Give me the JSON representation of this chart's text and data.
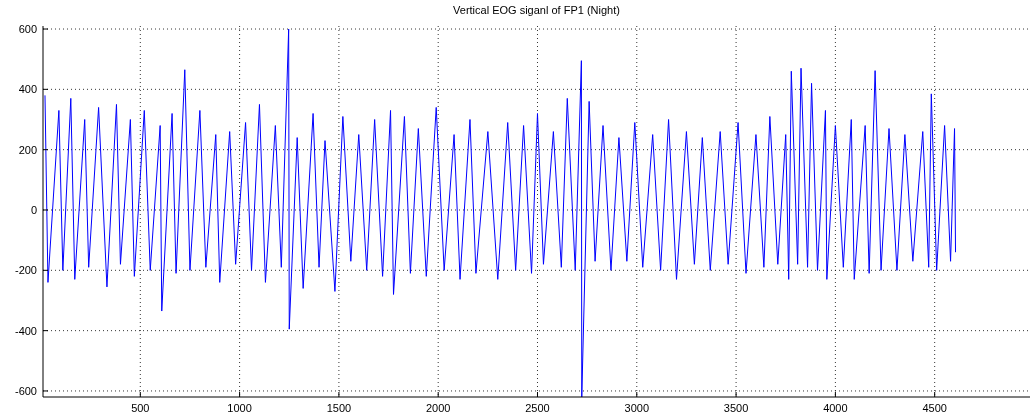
{
  "chart_data": {
    "type": "line",
    "title": "Vertical EOG siganl of FP1 (Night)",
    "xlim": [
      10,
      4980
    ],
    "ylim": [
      -620,
      610
    ],
    "xticks": [
      500,
      1000,
      1500,
      2000,
      2500,
      3000,
      3500,
      4000,
      4500
    ],
    "yticks": [
      -600,
      -400,
      -200,
      0,
      200,
      400,
      600
    ],
    "grid": true,
    "line_style": "solid",
    "series": [
      {
        "color": "#0000ff",
        "x": [
          20,
          35,
          90,
          110,
          150,
          170,
          220,
          240,
          290,
          332,
          380,
          400,
          450,
          470,
          520,
          550,
          600,
          608,
          660,
          680,
          724,
          750,
          800,
          830,
          880,
          900,
          950,
          980,
          1030,
          1060,
          1100,
          1130,
          1180,
          1210,
          1247,
          1250,
          1290,
          1320,
          1370,
          1400,
          1430,
          1480,
          1520,
          1560,
          1600,
          1640,
          1680,
          1720,
          1760,
          1775,
          1830,
          1860,
          1900,
          1940,
          1990,
          2030,
          2080,
          2110,
          2160,
          2190,
          2250,
          2300,
          2350,
          2390,
          2430,
          2470,
          2500,
          2530,
          2580,
          2620,
          2650,
          2690,
          2721,
          2723,
          2760,
          2790,
          2830,
          2870,
          2910,
          2950,
          2990,
          3030,
          3080,
          3120,
          3160,
          3200,
          3250,
          3290,
          3330,
          3370,
          3420,
          3460,
          3510,
          3550,
          3600,
          3640,
          3670,
          3710,
          3750,
          3765,
          3778,
          3810,
          3827,
          3860,
          3880,
          3910,
          3950,
          3957,
          4000,
          4040,
          4080,
          4095,
          4150,
          4170,
          4200,
          4230,
          4270,
          4310,
          4350,
          4390,
          4440,
          4470,
          4483,
          4510,
          4550,
          4580,
          4600,
          4605
        ],
        "values": [
          380,
          -240,
          330,
          -200,
          370,
          -230,
          300,
          -190,
          340,
          -255,
          350,
          -180,
          300,
          -220,
          330,
          -200,
          280,
          -335,
          320,
          -210,
          465,
          -200,
          330,
          -190,
          250,
          -240,
          260,
          -180,
          290,
          -200,
          350,
          -240,
          280,
          -190,
          600,
          -395,
          240,
          -260,
          320,
          -190,
          230,
          -270,
          310,
          -170,
          250,
          -200,
          300,
          -220,
          330,
          -280,
          310,
          -210,
          270,
          -220,
          340,
          -200,
          250,
          -230,
          300,
          -210,
          260,
          -230,
          290,
          -200,
          280,
          -210,
          320,
          -180,
          260,
          -190,
          370,
          -200,
          495,
          -620,
          360,
          -170,
          280,
          -200,
          240,
          -170,
          290,
          -190,
          250,
          -200,
          300,
          -230,
          260,
          -180,
          240,
          -200,
          260,
          -180,
          290,
          -210,
          250,
          -190,
          310,
          -180,
          250,
          -230,
          460,
          -180,
          470,
          -190,
          420,
          -200,
          330,
          -230,
          280,
          -190,
          300,
          -230,
          280,
          -210,
          462,
          -200,
          270,
          -200,
          250,
          -170,
          260,
          -190,
          385,
          -200,
          280,
          -170,
          270,
          -140
        ]
      }
    ]
  }
}
